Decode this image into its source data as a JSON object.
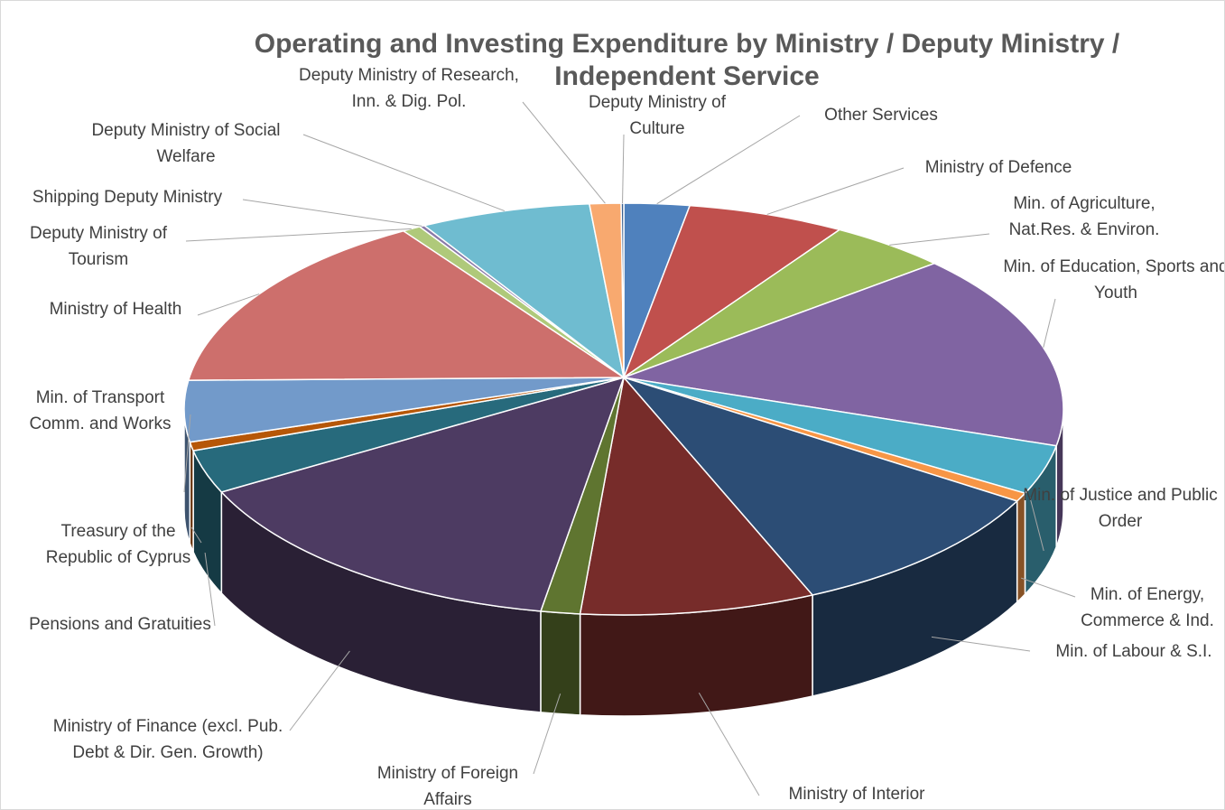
{
  "chart_data": {
    "type": "pie",
    "title": "Operating and Investing Expenditure by Ministry / Deputy Ministry / Independent Service",
    "categories": [
      "Other Services",
      "Ministry of Defence",
      "Min. of Agriculture, Nat.Res. & Environ.",
      "Min. of Education, Sports and Youth",
      "Min. of Justice and Public Order",
      "Min. of Energy, Commerce & Ind.",
      "Min. of Labour & S.I.",
      "Ministry of Interior",
      "Ministry of Foreign Affairs",
      "Ministry of Finance (excl. Pub. Debt & Dir. Gen. Growth)",
      "Pensions and Gratuities",
      "Treasury of the Republic of Cyprus",
      "Min. of Transport Comm. and Works",
      "Ministry of Health",
      "Deputy Ministry of Tourism",
      "Shipping Deputy Ministry",
      "Deputy Ministry of Social Welfare",
      "Deputy Ministry of Research, Inn. & Dig. Pol.",
      "Deputy Ministry of Culture"
    ],
    "values": [
      2.5,
      6,
      4.5,
      16,
      4,
      0.7,
      11,
      9,
      1.5,
      16,
      3.5,
      0.7,
      5,
      15,
      0.7,
      0.2,
      6.5,
      1.2,
      0.1
    ],
    "colors": [
      "#4f81bd",
      "#c0504d",
      "#9bbb59",
      "#8064a2",
      "#4bacc6",
      "#f79646",
      "#2c4d75",
      "#772c2a",
      "#5f7530",
      "#4d3b62",
      "#276a7c",
      "#b65708",
      "#729aca",
      "#cd6f6c",
      "#afc97a",
      "#8a7aa8",
      "#6fbcd0",
      "#f8a96f",
      "#3a5f8e"
    ]
  }
}
